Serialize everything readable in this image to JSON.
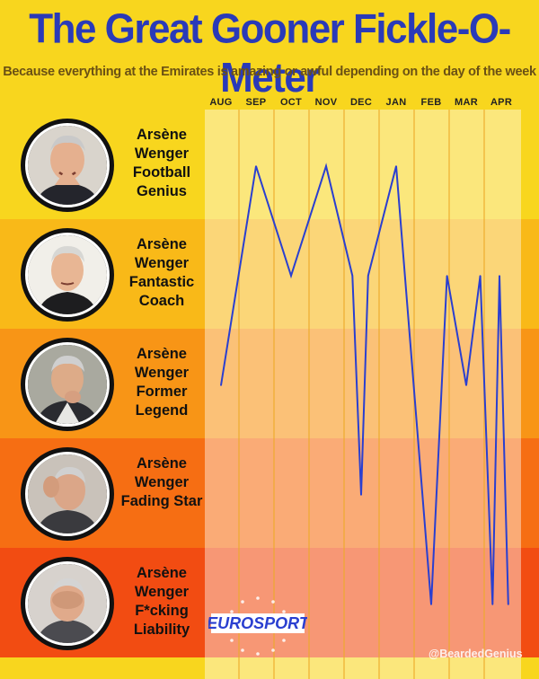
{
  "header": {
    "title": "The Great Gooner Fickle-O-Meter",
    "subtitle": "Because everything at the Emirates is amazing or awful depending on the day of the week"
  },
  "levels": [
    {
      "label": "Arsène Wenger Football Genius",
      "color": "#f8d61e"
    },
    {
      "label": "Arsène Wenger Fantastic Coach",
      "color": "#f9b918"
    },
    {
      "label": "Arsène Wenger Former Legend",
      "color": "#f89516"
    },
    {
      "label": "Arsène Wenger Fading Star",
      "color": "#f66e13"
    },
    {
      "label": "Arsène Wenger F*cking Liability",
      "color": "#f24c12"
    }
  ],
  "chart_data": {
    "type": "line",
    "title": "The Great Gooner Fickle-O-Meter",
    "subtitle": "Because everything at the Emirates is amazing or awful depending on the day of the week",
    "x_tick_labels": [
      "AUG",
      "SEP",
      "OCT",
      "NOV",
      "DEC",
      "JAN",
      "FEB",
      "MAR",
      "APR"
    ],
    "y_levels": [
      "Arsène Wenger F*cking Liability",
      "Arsène Wenger Fading Star",
      "Arsène Wenger Former Legend",
      "Arsène Wenger Fantastic Coach",
      "Arsène Wenger Football Genius"
    ],
    "ylim": [
      1,
      5
    ],
    "grid": true,
    "line_color": "#2a3fd0",
    "points": [
      {
        "month": "AUG",
        "x": 0.0,
        "y": 3.0
      },
      {
        "month": "SEP",
        "x": 1.0,
        "y": 5.0
      },
      {
        "month": "OCT",
        "x": 2.0,
        "y": 4.0
      },
      {
        "month": "NOV",
        "x": 3.0,
        "y": 5.0
      },
      {
        "month": "DEC",
        "x": 3.75,
        "y": 4.0
      },
      {
        "month": "DEC",
        "x": 4.0,
        "y": 2.0
      },
      {
        "month": "DEC",
        "x": 4.2,
        "y": 4.0
      },
      {
        "month": "JAN",
        "x": 5.0,
        "y": 5.0
      },
      {
        "month": "JAN",
        "x": 6.0,
        "y": 1.0
      },
      {
        "month": "FEB",
        "x": 6.45,
        "y": 4.0
      },
      {
        "month": "FEB",
        "x": 7.0,
        "y": 3.0
      },
      {
        "month": "MAR",
        "x": 7.4,
        "y": 4.0
      },
      {
        "month": "MAR",
        "x": 7.75,
        "y": 1.0
      },
      {
        "month": "APR",
        "x": 7.95,
        "y": 4.0
      },
      {
        "month": "APR",
        "x": 8.2,
        "y": 1.0
      }
    ]
  },
  "footer": {
    "logo_text": "EUROSPORT",
    "credit": "@BeardedGenius"
  }
}
